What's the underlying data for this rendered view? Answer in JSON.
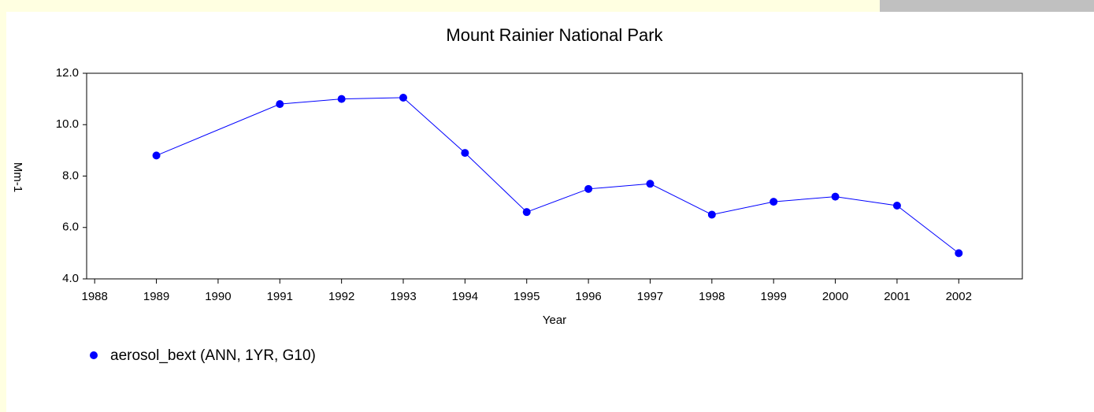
{
  "chart_data": {
    "type": "line",
    "title": "Mount Rainier National Park",
    "x_label": "Year",
    "y_label": "Mm-1",
    "x": [
      1989,
      1991,
      1992,
      1993,
      1994,
      1995,
      1996,
      1997,
      1998,
      1999,
      2000,
      2001,
      2002
    ],
    "series": [
      {
        "name": "aerosol_bext (ANN, 1YR, G10)",
        "color": "#0000ff",
        "values": [
          8.8,
          10.8,
          11.0,
          11.05,
          8.9,
          6.6,
          7.5,
          7.7,
          6.5,
          7.0,
          7.2,
          6.85,
          5.0
        ]
      }
    ],
    "xlim": [
      1987.87,
      2003.03
    ],
    "xticks": [
      1988,
      1989,
      1990,
      1991,
      1992,
      1993,
      1994,
      1995,
      1996,
      1997,
      1998,
      1999,
      2000,
      2001,
      2002
    ],
    "ylim": [
      4.0,
      12.0
    ],
    "yticks": [
      {
        "value": 4,
        "label": "4.0"
      },
      {
        "value": 6,
        "label": "6.0"
      },
      {
        "value": 8,
        "label": "8.0"
      },
      {
        "value": 10,
        "label": "10.0"
      },
      {
        "value": 12,
        "label": "12.0"
      }
    ],
    "grid": false
  }
}
